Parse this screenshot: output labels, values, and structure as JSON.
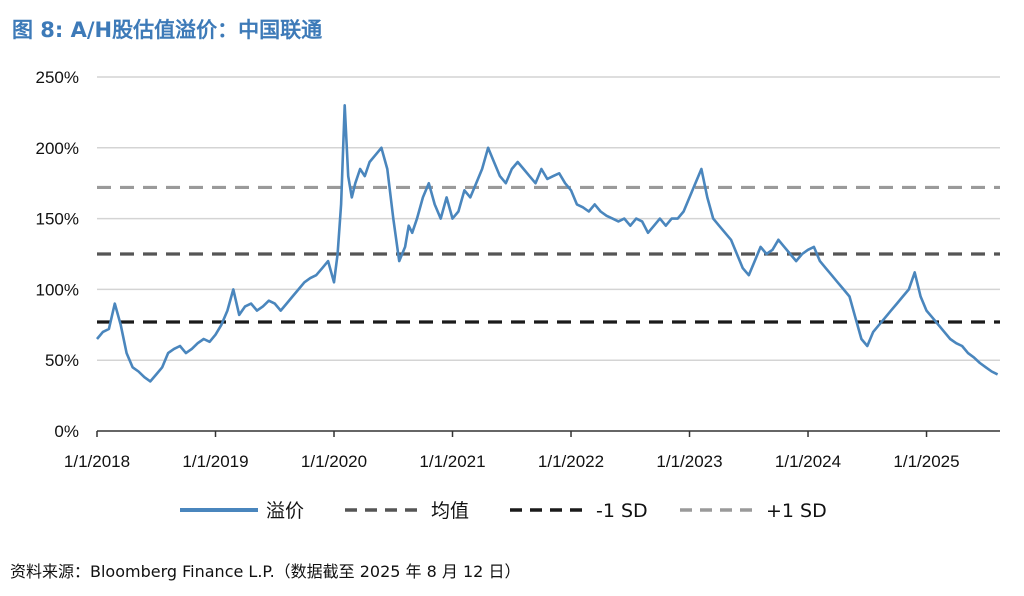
{
  "title": "图 8: A/H股估值溢价：中国联通",
  "source": "资料来源：Bloomberg Finance L.P.（数据截至 2025 年 8 月 12 日）",
  "colors": {
    "premium": "#4a86bd",
    "mean": "#555555",
    "minus_sd": "#1a1a1a",
    "plus_sd": "#9a9a9a",
    "grid": "#d4d4d4",
    "axis": "#333333",
    "title": "#3d7ab8"
  },
  "chart_data": {
    "type": "line",
    "title": "图 8: A/H股估值溢价：中国联通",
    "xlabel": "",
    "ylabel": "",
    "ylim": [
      0,
      250
    ],
    "y_ticks": [
      "0%",
      "50%",
      "100%",
      "150%",
      "200%",
      "250%"
    ],
    "y_tick_values": [
      0,
      50,
      100,
      150,
      200,
      250
    ],
    "x_ticks": [
      "1/1/2018",
      "1/1/2019",
      "1/1/2020",
      "1/1/2021",
      "1/1/2022",
      "1/1/2023",
      "1/1/2024",
      "1/1/2025"
    ],
    "x_tick_values": [
      2018.0,
      2019.0,
      2020.0,
      2021.0,
      2022.0,
      2023.0,
      2024.0,
      2025.0
    ],
    "xlim": [
      2018.0,
      2025.62
    ],
    "grid": true,
    "legend_position": "bottom",
    "series": [
      {
        "name": "溢价",
        "style": "solid",
        "x": [
          2018.0,
          2018.05,
          2018.1,
          2018.15,
          2018.2,
          2018.25,
          2018.3,
          2018.35,
          2018.4,
          2018.45,
          2018.5,
          2018.55,
          2018.6,
          2018.65,
          2018.7,
          2018.75,
          2018.8,
          2018.85,
          2018.9,
          2018.95,
          2019.0,
          2019.05,
          2019.1,
          2019.15,
          2019.2,
          2019.25,
          2019.3,
          2019.35,
          2019.4,
          2019.45,
          2019.5,
          2019.55,
          2019.6,
          2019.65,
          2019.7,
          2019.75,
          2019.8,
          2019.85,
          2019.9,
          2019.95,
          2020.0,
          2020.03,
          2020.06,
          2020.09,
          2020.12,
          2020.15,
          2020.18,
          2020.22,
          2020.26,
          2020.3,
          2020.35,
          2020.4,
          2020.45,
          2020.5,
          2020.55,
          2020.6,
          2020.63,
          2020.66,
          2020.7,
          2020.75,
          2020.8,
          2020.85,
          2020.9,
          2020.95,
          2021.0,
          2021.05,
          2021.1,
          2021.15,
          2021.2,
          2021.25,
          2021.3,
          2021.35,
          2021.4,
          2021.45,
          2021.5,
          2021.55,
          2021.6,
          2021.65,
          2021.7,
          2021.75,
          2021.8,
          2021.85,
          2021.9,
          2021.95,
          2022.0,
          2022.05,
          2022.1,
          2022.15,
          2022.2,
          2022.25,
          2022.3,
          2022.35,
          2022.4,
          2022.45,
          2022.5,
          2022.55,
          2022.6,
          2022.65,
          2022.7,
          2022.75,
          2022.8,
          2022.85,
          2022.9,
          2022.95,
          2023.0,
          2023.05,
          2023.1,
          2023.15,
          2023.2,
          2023.25,
          2023.3,
          2023.35,
          2023.4,
          2023.45,
          2023.5,
          2023.55,
          2023.6,
          2023.65,
          2023.7,
          2023.75,
          2023.8,
          2023.85,
          2023.9,
          2023.95,
          2024.0,
          2024.05,
          2024.1,
          2024.15,
          2024.2,
          2024.25,
          2024.3,
          2024.35,
          2024.4,
          2024.45,
          2024.5,
          2024.55,
          2024.6,
          2024.65,
          2024.7,
          2024.75,
          2024.8,
          2024.85,
          2024.9,
          2024.95,
          2025.0,
          2025.05,
          2025.1,
          2025.15,
          2025.2,
          2025.25,
          2025.3,
          2025.35,
          2025.4,
          2025.45,
          2025.5,
          2025.55,
          2025.6
        ],
        "values": [
          65,
          70,
          72,
          90,
          75,
          55,
          45,
          42,
          38,
          35,
          40,
          45,
          55,
          58,
          60,
          55,
          58,
          62,
          65,
          63,
          68,
          75,
          85,
          100,
          82,
          88,
          90,
          85,
          88,
          92,
          90,
          85,
          90,
          95,
          100,
          105,
          108,
          110,
          115,
          120,
          105,
          125,
          160,
          230,
          180,
          165,
          175,
          185,
          180,
          190,
          195,
          200,
          185,
          150,
          120,
          130,
          145,
          140,
          150,
          165,
          175,
          160,
          150,
          165,
          150,
          155,
          170,
          165,
          175,
          185,
          200,
          190,
          180,
          175,
          185,
          190,
          185,
          180,
          175,
          185,
          178,
          180,
          182,
          175,
          170,
          160,
          158,
          155,
          160,
          155,
          152,
          150,
          148,
          150,
          145,
          150,
          148,
          140,
          145,
          150,
          145,
          150,
          150,
          155,
          165,
          175,
          185,
          165,
          150,
          145,
          140,
          135,
          125,
          115,
          110,
          120,
          130,
          125,
          128,
          135,
          130,
          125,
          120,
          125,
          128,
          130,
          120,
          115,
          110,
          105,
          100,
          95,
          80,
          65,
          60,
          70,
          75,
          80,
          85,
          90,
          95,
          100,
          112,
          95,
          85,
          80,
          75,
          70,
          65,
          62,
          60,
          55,
          52,
          48,
          45,
          42,
          40
        ]
      },
      {
        "name": "均值",
        "style": "dashed",
        "values": [
          125
        ]
      },
      {
        "name": "-1 SD",
        "style": "dashed",
        "values": [
          77
        ]
      },
      {
        "name": "+1 SD",
        "style": "dashed",
        "values": [
          172
        ]
      }
    ]
  }
}
